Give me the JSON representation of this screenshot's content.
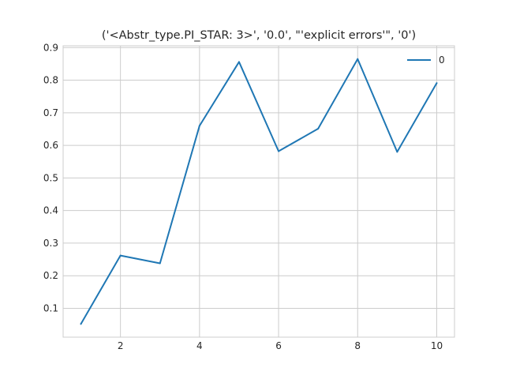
{
  "chart_data": {
    "type": "line",
    "title": "('<Abstr_type.PI_STAR: 3>', '0.0', \"'explicit errors'\", '0')",
    "xlabel": "",
    "ylabel": "",
    "x": [
      1,
      2,
      3,
      4,
      5,
      6,
      7,
      8,
      9,
      10
    ],
    "series": [
      {
        "name": "0",
        "color": "#1f77b4",
        "values": [
          0.052,
          0.262,
          0.238,
          0.66,
          0.856,
          0.582,
          0.651,
          0.865,
          0.58,
          0.791
        ]
      }
    ],
    "xlim": [
      0.55,
      10.45
    ],
    "ylim": [
      0.0115,
      0.9055
    ],
    "xticks": [
      2,
      4,
      6,
      8,
      10
    ],
    "xtick_labels": [
      "2",
      "4",
      "6",
      "8",
      "10"
    ],
    "yticks": [
      0.1,
      0.2,
      0.3,
      0.4,
      0.5,
      0.6,
      0.7,
      0.8,
      0.9
    ],
    "ytick_labels": [
      "0.1",
      "0.2",
      "0.3",
      "0.4",
      "0.5",
      "0.6",
      "0.7",
      "0.8",
      "0.9"
    ],
    "grid": true,
    "legend_position": "top-right"
  }
}
